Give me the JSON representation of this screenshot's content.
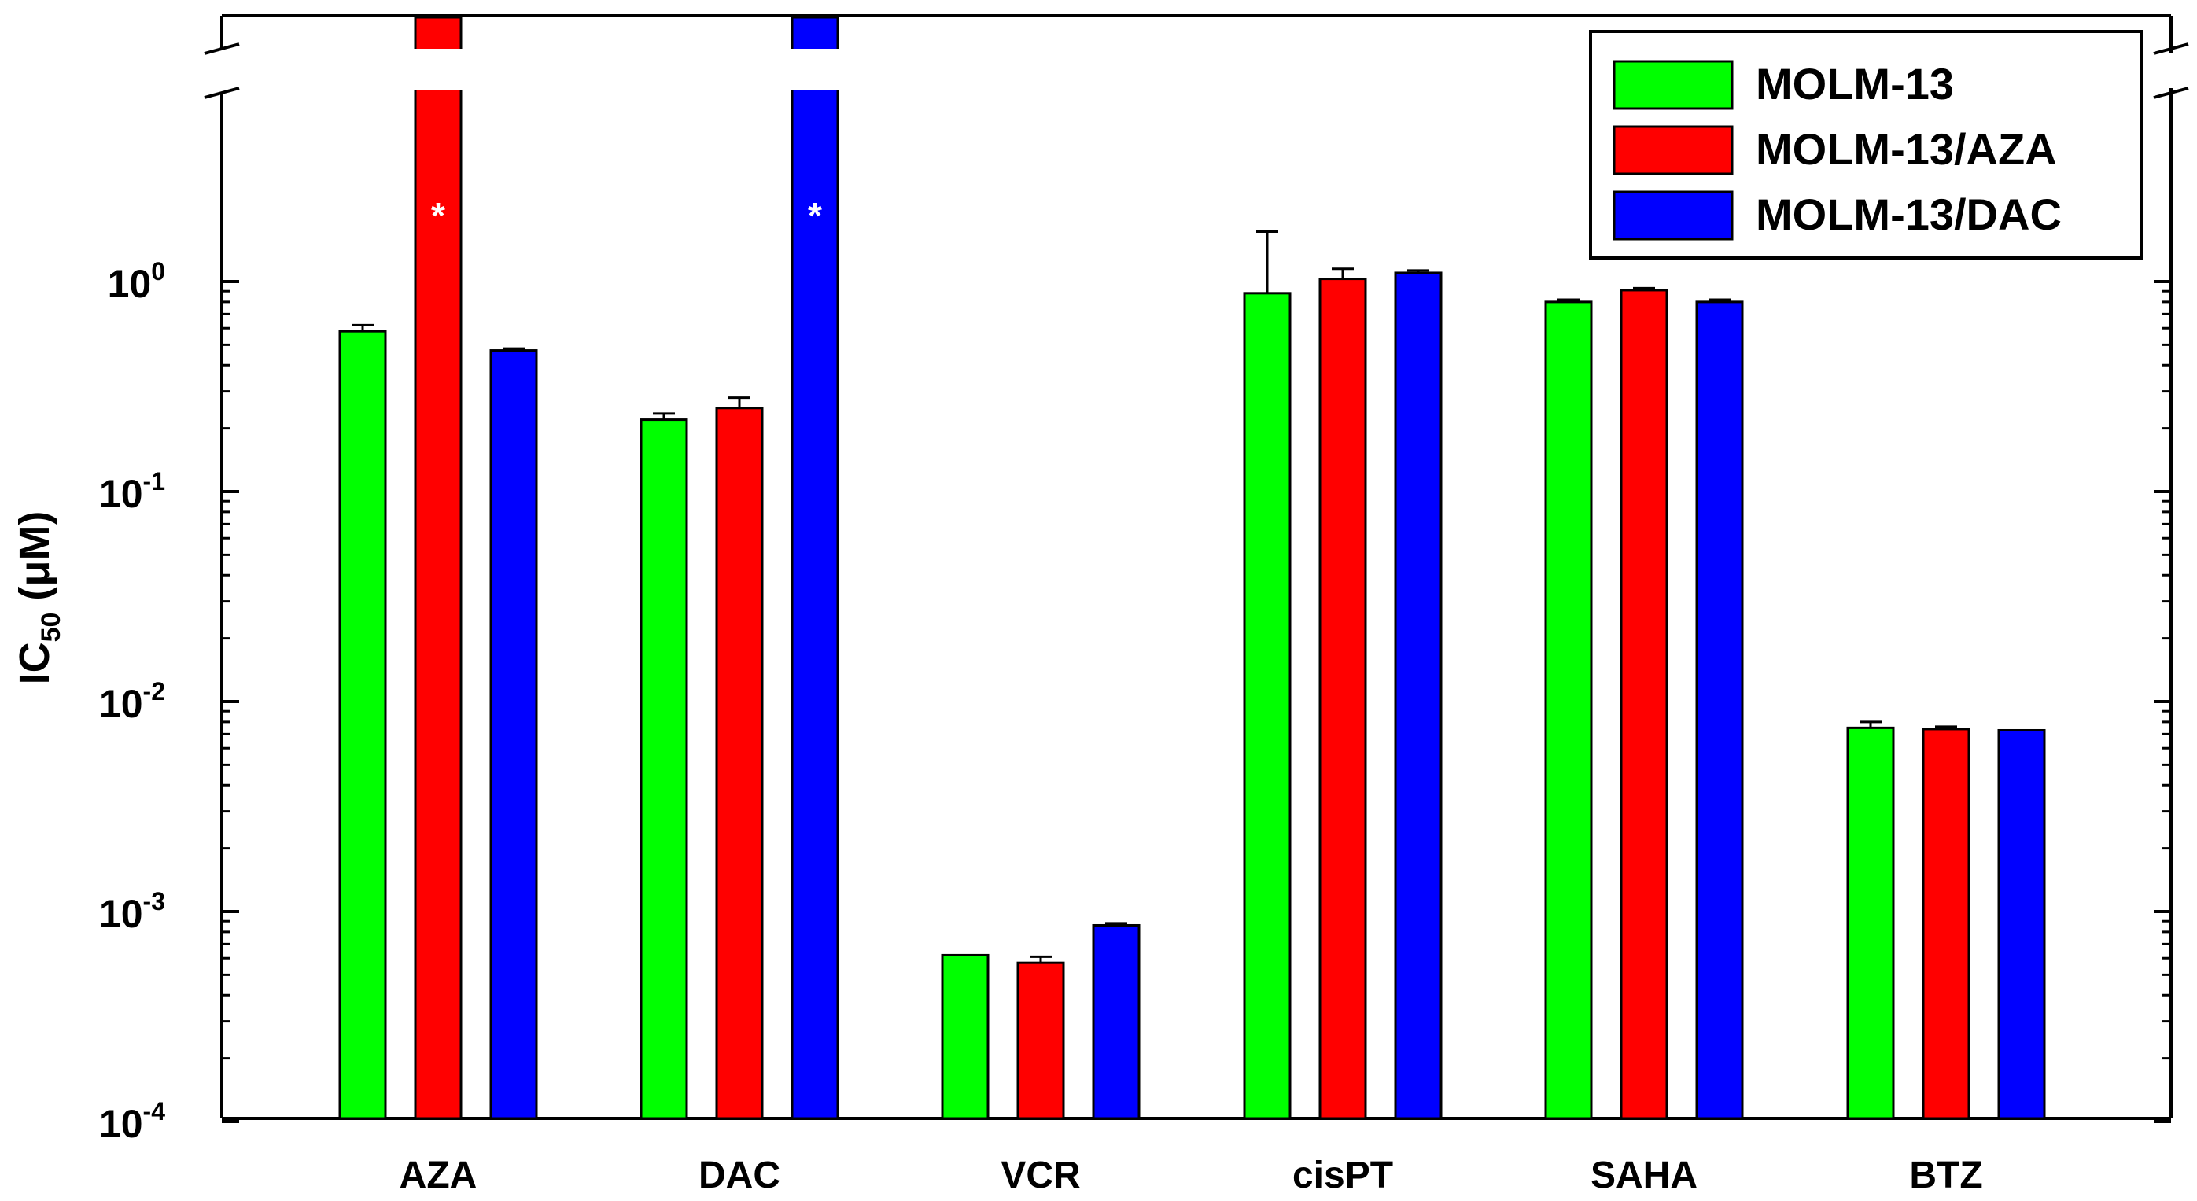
{
  "chart_data": {
    "type": "bar",
    "title": "",
    "xlabel": "",
    "ylabel": {
      "main": "IC",
      "sub": "50",
      "rest": " (μM)"
    },
    "yscale": "log",
    "ylim": [
      0.0001,
      10
    ],
    "y_axis_break": true,
    "yticks": [
      {
        "value": 1,
        "base": "10",
        "exp": "0"
      },
      {
        "value": 0.1,
        "base": "10",
        "exp": "-1"
      },
      {
        "value": 0.01,
        "base": "10",
        "exp": "-2"
      },
      {
        "value": 0.001,
        "base": "10",
        "exp": "-3"
      },
      {
        "value": 0.0001,
        "base": "10",
        "exp": "-4"
      }
    ],
    "categories": [
      "AZA",
      "DAC",
      "VCR",
      "cisPT",
      "SAHA",
      "BTZ"
    ],
    "series": [
      {
        "name": "MOLM-13",
        "color": "#00ff00",
        "values": [
          0.58,
          0.22,
          0.00062,
          0.88,
          0.8,
          0.0075
        ],
        "errors": [
          0.04,
          0.015,
          0.0,
          0.85,
          0.02,
          0.0005
        ]
      },
      {
        "name": "MOLM-13/AZA",
        "color": "#ff0000",
        "values": [
          null,
          0.25,
          0.00057,
          1.03,
          0.91,
          0.0074
        ],
        "errors": [
          0,
          0.03,
          4e-05,
          0.12,
          0.02,
          0.0002
        ]
      },
      {
        "name": "MOLM-13/DAC",
        "color": "#0000ff",
        "values": [
          0.47,
          null,
          0.00086,
          1.1,
          0.8,
          0.0073
        ],
        "errors": [
          0.01,
          0,
          2e-05,
          0.03,
          0.02,
          0.0
        ]
      }
    ],
    "off_scale_marker": "*",
    "legend": {
      "position": "top-right"
    },
    "grid": false
  }
}
